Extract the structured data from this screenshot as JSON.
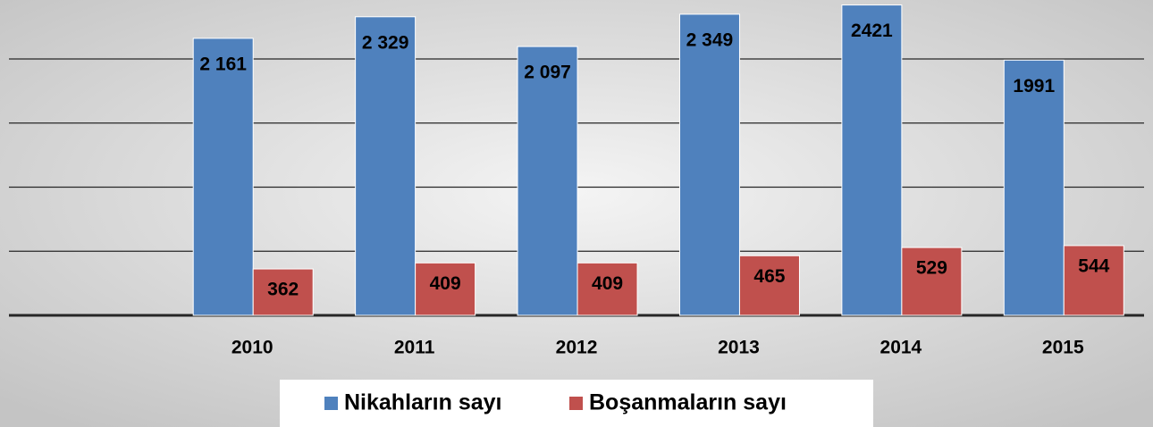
{
  "chart_data": {
    "type": "bar",
    "categories": [
      "2010",
      "2011",
      "2012",
      "2013",
      "2014",
      "2015"
    ],
    "series": [
      {
        "name": "Nikahların sayı",
        "color": "#4f81bd",
        "values": [
          2161,
          2329,
          2097,
          2349,
          2421,
          1991
        ],
        "value_labels": [
          "2 161",
          "2 329",
          "2 097",
          "2 349",
          "2421",
          "1991"
        ]
      },
      {
        "name": "Boşanmaların sayı",
        "color": "#c0504d",
        "values": [
          362,
          409,
          409,
          465,
          529,
          544
        ]
      }
    ],
    "ylim": [
      0,
      2500
    ],
    "yticks": [
      0,
      500,
      1000,
      1500,
      2000
    ],
    "grid": true,
    "legend": "bottom"
  }
}
